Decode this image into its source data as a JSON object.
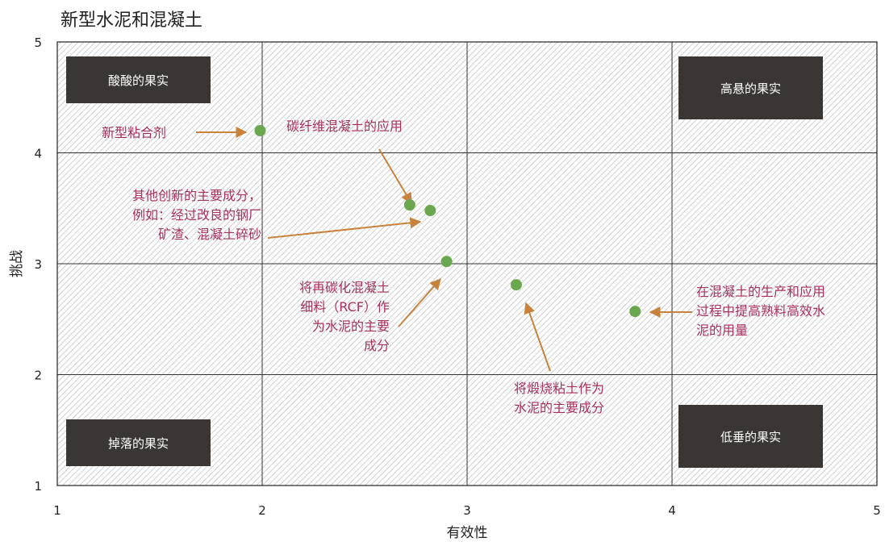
{
  "chart_data": {
    "type": "scatter",
    "title": "新型水泥和混凝土",
    "xlabel": "有效性",
    "ylabel": "挑战",
    "xlim": [
      1,
      5
    ],
    "ylim": [
      1,
      5
    ],
    "xticks": [
      "1",
      "2",
      "3",
      "4",
      "5"
    ],
    "yticks": [
      "1",
      "2",
      "3",
      "4",
      "5"
    ],
    "grid": true,
    "points": [
      {
        "x": 1.99,
        "y": 4.2
      },
      {
        "x": 2.72,
        "y": 3.53
      },
      {
        "x": 2.82,
        "y": 3.48
      },
      {
        "x": 2.9,
        "y": 3.02
      },
      {
        "x": 3.24,
        "y": 2.81
      },
      {
        "x": 3.82,
        "y": 2.57
      }
    ],
    "quadrant_labels": [
      "酸酸的果实",
      "高悬的果实",
      "掉落的果实",
      "低垂的果实"
    ],
    "annotations": [
      {
        "lines": [
          "新型粘合剂"
        ]
      },
      {
        "lines": [
          "碳纤维混凝土的应用"
        ]
      },
      {
        "lines": [
          "其他创新的主要成分，",
          "例如：经过改良的钢厂",
          "矿渣、混凝土碎砂"
        ]
      },
      {
        "lines": [
          "将再碳化混凝土",
          "细料（RCF）作",
          "为水泥的主要",
          "成分"
        ]
      },
      {
        "lines": [
          "将煅烧粘土作为",
          "水泥的主要成分"
        ]
      },
      {
        "lines": [
          "在混凝土的生产和应用",
          "过程中提高熟料高效水",
          "泥的用量"
        ]
      }
    ],
    "colors": {
      "point": "#6aa84f",
      "annotation": "#a8305e",
      "arrow": "#c8823c",
      "box": "#3a3633"
    }
  }
}
